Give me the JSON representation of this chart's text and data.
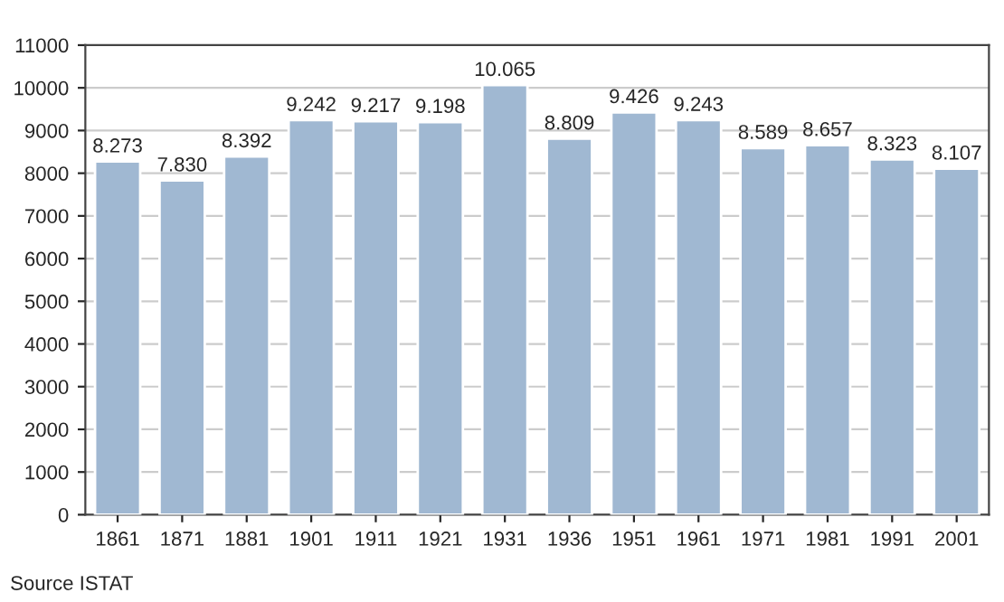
{
  "chart_data": {
    "type": "bar",
    "categories": [
      "1861",
      "1871",
      "1881",
      "1901",
      "1911",
      "1921",
      "1931",
      "1936",
      "1951",
      "1961",
      "1971",
      "1981",
      "1991",
      "2001"
    ],
    "values": [
      8273,
      7830,
      8392,
      9242,
      9217,
      9198,
      10065,
      8809,
      9426,
      9243,
      8589,
      8657,
      8323,
      8107
    ],
    "value_labels": [
      "8.273",
      "7.830",
      "8.392",
      "9.242",
      "9.217",
      "9.198",
      "10.065",
      "8.809",
      "9.426",
      "9.243",
      "8.589",
      "8.657",
      "8.323",
      "8.107"
    ],
    "color": "#a0b8d2",
    "ylim": [
      0,
      11000
    ],
    "yticks": [
      0,
      1000,
      2000,
      3000,
      4000,
      5000,
      6000,
      7000,
      8000,
      9000,
      10000,
      11000
    ],
    "grid": "y",
    "annotations": [
      "Source ISTAT"
    ]
  }
}
